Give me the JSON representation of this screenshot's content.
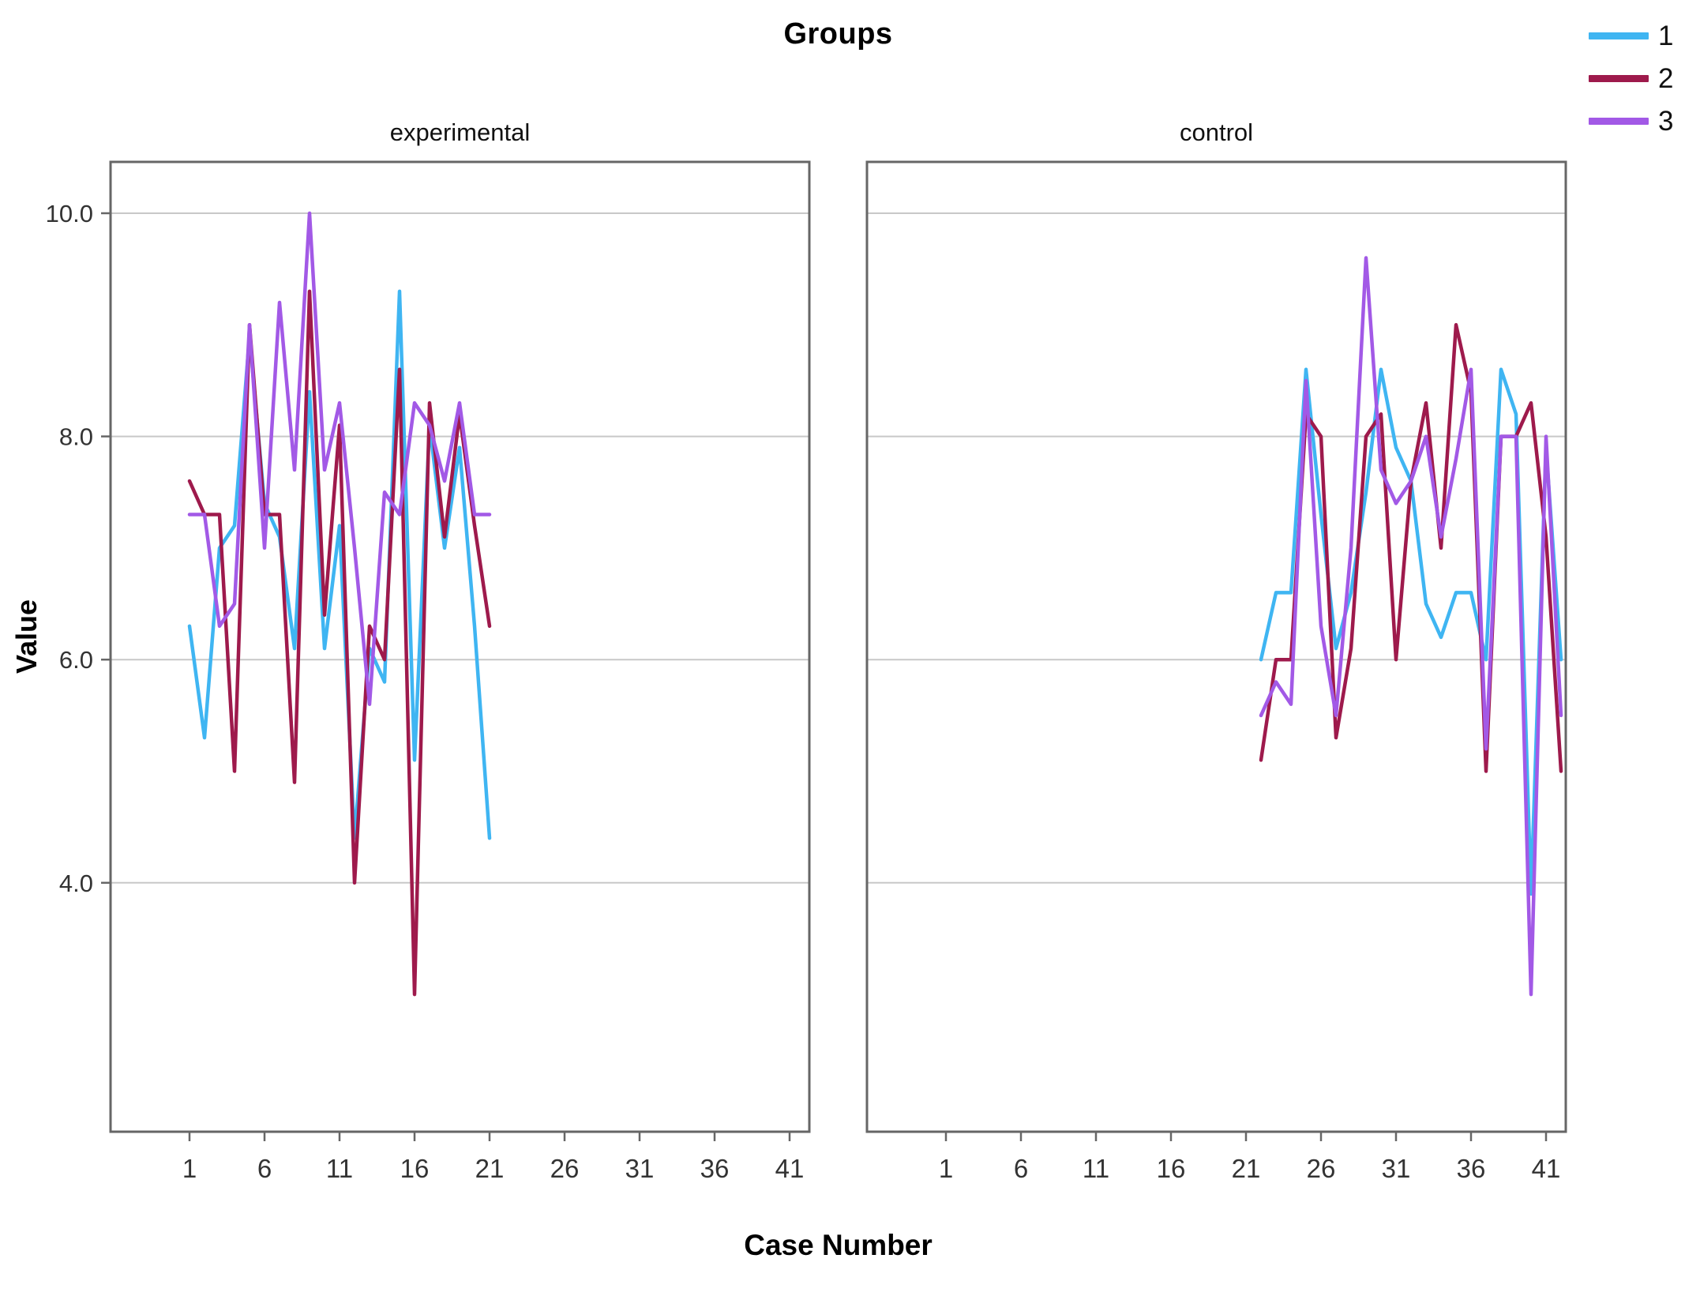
{
  "title": "Groups",
  "y_axis": {
    "label": "Value",
    "ticks": [
      {
        "value": 10.0,
        "label": "10.0"
      },
      {
        "value": 8.0,
        "label": "8.0"
      },
      {
        "value": 6.0,
        "label": "6.0"
      },
      {
        "value": 4.0,
        "label": "4.0"
      }
    ]
  },
  "x_axis": {
    "label": "Case Number",
    "ticks": [
      1,
      6,
      11,
      16,
      21,
      26,
      31,
      36,
      41
    ]
  },
  "legend": {
    "items": [
      {
        "label": "1",
        "color": "#3FB5F2"
      },
      {
        "label": "2",
        "color": "#9E1A4C"
      },
      {
        "label": "3",
        "color": "#A259E6"
      }
    ]
  },
  "colors": {
    "series1": "#3FB5F2",
    "series2": "#9E1A4C",
    "series3": "#A259E6",
    "gridline": "#C8C8C8",
    "frame": "#666666",
    "tick_text": "#333333",
    "title_text": "#000000"
  },
  "chart_data": {
    "type": "line",
    "title": "Groups",
    "xlabel": "Case Number",
    "ylabel": "Value",
    "x_ticks": [
      1,
      6,
      11,
      16,
      21,
      26,
      31,
      36,
      41
    ],
    "y_ticks": [
      4.0,
      6.0,
      8.0,
      10.0
    ],
    "ylim": [
      1.8,
      10.5
    ],
    "xlim": [
      0,
      45
    ],
    "grid": "horizontal-only",
    "legend_position": "top-right",
    "panel_variable_values": [
      "experimental",
      "control"
    ],
    "panels": [
      {
        "name": "experimental",
        "cases": [
          1,
          2,
          3,
          4,
          5,
          6,
          7,
          8,
          9,
          10,
          11,
          12,
          13,
          14,
          15,
          16,
          17,
          18,
          19,
          20,
          21
        ],
        "series": [
          {
            "name": "1",
            "color": "#3FB5F2",
            "values": [
              6.3,
              5.3,
              7.0,
              7.2,
              8.9,
              7.4,
              7.1,
              6.1,
              8.4,
              6.1,
              7.2,
              4.4,
              6.1,
              5.8,
              9.3,
              5.1,
              8.1,
              7.0,
              7.9,
              6.3,
              4.4
            ]
          },
          {
            "name": "2",
            "color": "#9E1A4C",
            "values": [
              7.6,
              7.3,
              7.3,
              5.0,
              9.0,
              7.3,
              7.3,
              4.9,
              9.3,
              6.4,
              8.1,
              4.0,
              6.3,
              6.0,
              8.6,
              3.0,
              8.3,
              7.1,
              8.2,
              7.2,
              6.3
            ]
          },
          {
            "name": "3",
            "color": "#A259E6",
            "values": [
              7.3,
              7.3,
              6.3,
              6.5,
              9.0,
              7.0,
              9.2,
              7.7,
              10.0,
              7.7,
              8.3,
              7.0,
              5.6,
              7.5,
              7.3,
              8.3,
              8.1,
              7.6,
              8.3,
              7.3,
              7.3
            ]
          }
        ]
      },
      {
        "name": "control",
        "cases": [
          22,
          23,
          24,
          25,
          26,
          27,
          28,
          29,
          30,
          31,
          32,
          33,
          34,
          35,
          36,
          37,
          38,
          39,
          40,
          41,
          42
        ],
        "series": [
          {
            "name": "1",
            "color": "#3FB5F2",
            "values": [
              6.0,
              6.6,
              6.6,
              8.6,
              7.3,
              6.1,
              6.6,
              7.5,
              8.6,
              7.9,
              7.6,
              6.5,
              6.2,
              6.6,
              6.6,
              6.0,
              8.6,
              8.2,
              3.9,
              7.9,
              6.0
            ]
          },
          {
            "name": "2",
            "color": "#9E1A4C",
            "values": [
              5.1,
              6.0,
              6.0,
              8.2,
              8.0,
              5.3,
              6.1,
              8.0,
              8.2,
              6.0,
              7.6,
              8.3,
              7.0,
              9.0,
              8.4,
              5.0,
              8.0,
              8.0,
              8.3,
              7.1,
              5.0
            ]
          },
          {
            "name": "3",
            "color": "#A259E6",
            "values": [
              5.5,
              5.8,
              5.6,
              8.5,
              6.3,
              5.5,
              7.0,
              9.6,
              7.7,
              7.4,
              7.6,
              8.0,
              7.1,
              7.8,
              8.6,
              5.2,
              8.0,
              8.0,
              3.0,
              8.0,
              5.5
            ]
          }
        ]
      }
    ]
  }
}
